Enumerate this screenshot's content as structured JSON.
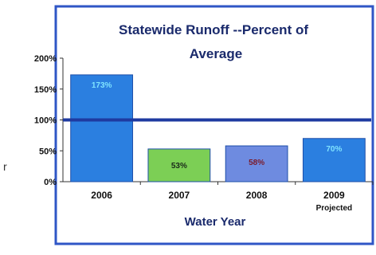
{
  "edge_fragment": "r",
  "colors": {
    "frame": "#2f56c6",
    "bar_blue": "#2b7fe0",
    "bar_green": "#7ccf55",
    "bar_purple": "#6e8be0",
    "reference_line": "#1e3aa0",
    "title": "#1a2a6c",
    "datalabel_on_blue": "#7fe3ff",
    "datalabel_on_green": "#1a2a1a",
    "datalabel_on_purple": "#7a1a2a"
  },
  "chart_data": {
    "type": "bar",
    "title_lines": [
      "Statewide Runoff --Percent of",
      "Average"
    ],
    "xlabel": "Water Year",
    "ylabel": "",
    "ylim": [
      0,
      200
    ],
    "yticks": [
      {
        "value": 0,
        "label": "0%"
      },
      {
        "value": 50,
        "label": "50%"
      },
      {
        "value": 100,
        "label": "100%"
      },
      {
        "value": 150,
        "label": "150%"
      },
      {
        "value": 200,
        "label": "200%"
      }
    ],
    "reference_line": 100,
    "grid": false,
    "legend": "none",
    "categories": [
      {
        "label": "2006",
        "sublabel": ""
      },
      {
        "label": "2007",
        "sublabel": ""
      },
      {
        "label": "2008",
        "sublabel": ""
      },
      {
        "label": "2009",
        "sublabel": "Projected"
      }
    ],
    "values": [
      173,
      53,
      58,
      70
    ],
    "data_labels": [
      "173%",
      "53%",
      "58%",
      "70%"
    ],
    "bar_color_keys": [
      "bar_blue",
      "bar_green",
      "bar_purple",
      "bar_blue"
    ],
    "label_color_keys": [
      "datalabel_on_blue",
      "datalabel_on_green",
      "datalabel_on_purple",
      "datalabel_on_blue"
    ]
  }
}
